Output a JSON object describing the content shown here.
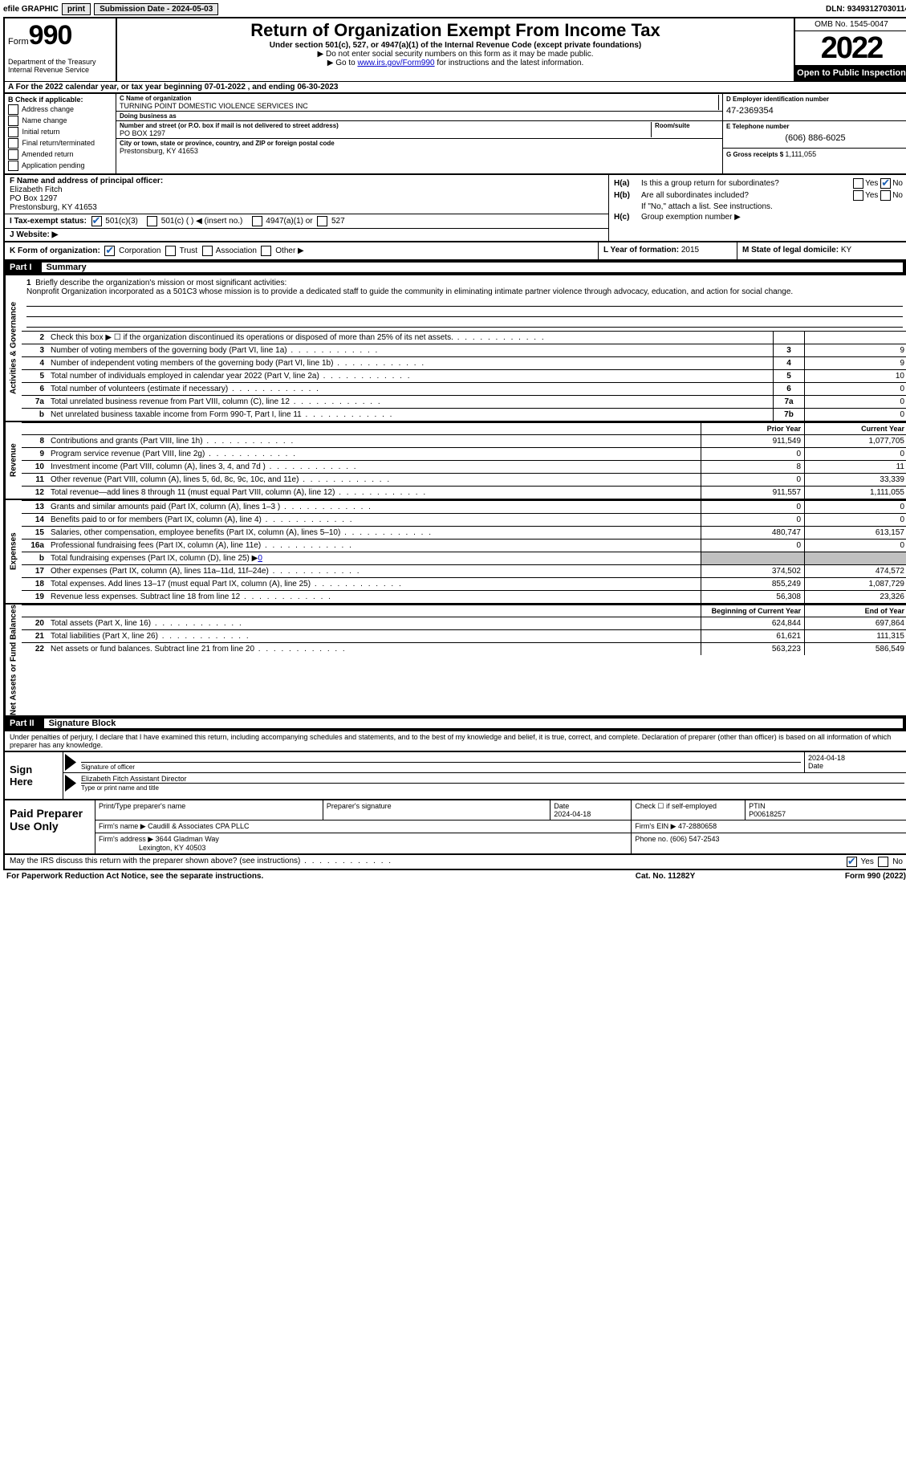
{
  "topbar": {
    "efile": "efile GRAPHIC",
    "print": "print",
    "subdate_label": "Submission Date - ",
    "subdate": "2024-05-03",
    "dln_label": "DLN: ",
    "dln": "93493127030114"
  },
  "header": {
    "form_label": "Form",
    "form_num": "990",
    "dept": "Department of the Treasury\nInternal Revenue Service",
    "title": "Return of Organization Exempt From Income Tax",
    "subtitle": "Under section 501(c), 527, or 4947(a)(1) of the Internal Revenue Code (except private foundations)",
    "line1": "▶ Do not enter social security numbers on this form as it may be made public.",
    "line2_pre": "▶ Go to ",
    "line2_link": "www.irs.gov/Form990",
    "line2_post": " for instructions and the latest information.",
    "omb": "OMB No. 1545-0047",
    "year": "2022",
    "open": "Open to Public Inspection"
  },
  "row_a": {
    "text": "A For the 2022 calendar year, or tax year beginning 07-01-2022     , and ending 06-30-2023"
  },
  "col_b": {
    "label": "B Check if applicable:",
    "opts": [
      "Address change",
      "Name change",
      "Initial return",
      "Final return/terminated",
      "Amended return",
      "Application pending"
    ]
  },
  "col_c": {
    "name_label": "C Name of organization",
    "name": "TURNING POINT DOMESTIC VIOLENCE SERVICES INC",
    "dba_label": "Doing business as",
    "dba": "",
    "addr_label": "Number and street (or P.O. box if mail is not delivered to street address)",
    "addr": "PO BOX 1297",
    "room_label": "Room/suite",
    "city_label": "City or town, state or province, country, and ZIP or foreign postal code",
    "city": "Prestonsburg, KY  41653"
  },
  "col_d": {
    "ein_label": "D Employer identification number",
    "ein": "47-2369354",
    "tel_label": "E Telephone number",
    "tel": "(606) 886-6025",
    "gross_label": "G Gross receipts $ ",
    "gross": "1,111,055"
  },
  "row_f": {
    "label": "F  Name and address of principal officer:",
    "name": "Elizabeth Fitch",
    "addr1": "PO Box 1297",
    "addr2": "Prestonsburg, KY  41653"
  },
  "row_h": {
    "a_label": "H(a)",
    "a_text": "Is this a group return for subordinates?",
    "b_label": "H(b)",
    "b_text": "Are all subordinates included?",
    "note": "If \"No,\" attach a list. See instructions.",
    "c_label": "H(c)",
    "c_text": "Group exemption number ▶"
  },
  "row_i": {
    "label": "I  Tax-exempt status:",
    "o1": "501(c)(3)",
    "o2": "501(c) (  ) ◀ (insert no.)",
    "o3": "4947(a)(1) or",
    "o4": "527"
  },
  "row_j": {
    "label": "J  Website: ▶"
  },
  "row_k": {
    "label": "K Form of organization:",
    "o1": "Corporation",
    "o2": "Trust",
    "o3": "Association",
    "o4": "Other ▶"
  },
  "row_l": {
    "label": "L Year of formation: ",
    "val": "2015"
  },
  "row_m": {
    "label": "M State of legal domicile: ",
    "val": "KY"
  },
  "part1": {
    "num": "Part I",
    "title": "Summary"
  },
  "mission": {
    "num": "1",
    "label": "Briefly describe the organization's mission or most significant activities:",
    "text": "Nonprofit Organization incorporated as a 501C3 whose mission is to provide a dedicated staff to guide the community in eliminating intimate partner violence through advocacy, education, and action for social change."
  },
  "gov_rows": [
    {
      "n": "2",
      "t": "Check this box ▶ ☐  if the organization discontinued its operations or disposed of more than 25% of its net assets.",
      "box": "",
      "v": ""
    },
    {
      "n": "3",
      "t": "Number of voting members of the governing body (Part VI, line 1a)",
      "box": "3",
      "v": "9"
    },
    {
      "n": "4",
      "t": "Number of independent voting members of the governing body (Part VI, line 1b)",
      "box": "4",
      "v": "9"
    },
    {
      "n": "5",
      "t": "Total number of individuals employed in calendar year 2022 (Part V, line 2a)",
      "box": "5",
      "v": "10"
    },
    {
      "n": "6",
      "t": "Total number of volunteers (estimate if necessary)",
      "box": "6",
      "v": "0"
    },
    {
      "n": "7a",
      "t": "Total unrelated business revenue from Part VIII, column (C), line 12",
      "box": "7a",
      "v": "0"
    },
    {
      "n": "b",
      "t": "Net unrelated business taxable income from Form 990-T, Part I, line 11",
      "box": "7b",
      "v": "0"
    }
  ],
  "year_hdr": {
    "prior": "Prior Year",
    "current": "Current Year"
  },
  "rev_rows": [
    {
      "n": "8",
      "t": "Contributions and grants (Part VIII, line 1h)",
      "p": "911,549",
      "c": "1,077,705"
    },
    {
      "n": "9",
      "t": "Program service revenue (Part VIII, line 2g)",
      "p": "0",
      "c": "0"
    },
    {
      "n": "10",
      "t": "Investment income (Part VIII, column (A), lines 3, 4, and 7d )",
      "p": "8",
      "c": "11"
    },
    {
      "n": "11",
      "t": "Other revenue (Part VIII, column (A), lines 5, 6d, 8c, 9c, 10c, and 11e)",
      "p": "0",
      "c": "33,339"
    },
    {
      "n": "12",
      "t": "Total revenue—add lines 8 through 11 (must equal Part VIII, column (A), line 12)",
      "p": "911,557",
      "c": "1,111,055"
    }
  ],
  "exp_rows": [
    {
      "n": "13",
      "t": "Grants and similar amounts paid (Part IX, column (A), lines 1–3 )",
      "p": "0",
      "c": "0"
    },
    {
      "n": "14",
      "t": "Benefits paid to or for members (Part IX, column (A), line 4)",
      "p": "0",
      "c": "0"
    },
    {
      "n": "15",
      "t": "Salaries, other compensation, employee benefits (Part IX, column (A), lines 5–10)",
      "p": "480,747",
      "c": "613,157"
    },
    {
      "n": "16a",
      "t": "Professional fundraising fees (Part IX, column (A), line 11e)",
      "p": "0",
      "c": "0"
    },
    {
      "n": "b",
      "t": "Total fundraising expenses (Part IX, column (D), line 25) ▶0",
      "p": "",
      "c": "",
      "shaded": true
    },
    {
      "n": "17",
      "t": "Other expenses (Part IX, column (A), lines 11a–11d, 11f–24e)",
      "p": "374,502",
      "c": "474,572"
    },
    {
      "n": "18",
      "t": "Total expenses. Add lines 13–17 (must equal Part IX, column (A), line 25)",
      "p": "855,249",
      "c": "1,087,729"
    },
    {
      "n": "19",
      "t": "Revenue less expenses. Subtract line 18 from line 12",
      "p": "56,308",
      "c": "23,326"
    }
  ],
  "net_hdr": {
    "begin": "Beginning of Current Year",
    "end": "End of Year"
  },
  "net_rows": [
    {
      "n": "20",
      "t": "Total assets (Part X, line 16)",
      "p": "624,844",
      "c": "697,864"
    },
    {
      "n": "21",
      "t": "Total liabilities (Part X, line 26)",
      "p": "61,621",
      "c": "111,315"
    },
    {
      "n": "22",
      "t": "Net assets or fund balances. Subtract line 21 from line 20",
      "p": "563,223",
      "c": "586,549"
    }
  ],
  "side": {
    "gov": "Activities & Governance",
    "rev": "Revenue",
    "exp": "Expenses",
    "net": "Net Assets or Fund Balances"
  },
  "part2": {
    "num": "Part II",
    "title": "Signature Block"
  },
  "sig_text": "Under penalties of perjury, I declare that I have examined this return, including accompanying schedules and statements, and to the best of my knowledge and belief, it is true, correct, and complete. Declaration of preparer (other than officer) is based on all information of which preparer has any knowledge.",
  "sign": {
    "label": "Sign Here",
    "sig_label": "Signature of officer",
    "date": "2024-04-18",
    "date_label": "Date",
    "name": "Elizabeth Fitch  Assistant Director",
    "name_label": "Type or print name and title"
  },
  "prep": {
    "label": "Paid Preparer Use Only",
    "r1c1_label": "Print/Type preparer's name",
    "r1c2_label": "Preparer's signature",
    "r1c3_label": "Date",
    "r1c3": "2024-04-18",
    "r1c4_label": "Check ☐ if self-employed",
    "r1c5_label": "PTIN",
    "r1c5": "P00618257",
    "r2c1_label": "Firm's name     ▶ ",
    "r2c1": "Caudill & Associates CPA PLLC",
    "r2c2_label": "Firm's EIN ▶ ",
    "r2c2": "47-2880658",
    "r3c1_label": "Firm's address ▶ ",
    "r3c1a": "3644 Gladman Way",
    "r3c1b": "Lexington, KY  40503",
    "r3c2_label": "Phone no. ",
    "r3c2": "(606) 547-2543"
  },
  "discuss": {
    "text": "May the IRS discuss this return with the preparer shown above? (see instructions)",
    "yes": "Yes",
    "no": "No"
  },
  "bottom": {
    "left": "For Paperwork Reduction Act Notice, see the separate instructions.",
    "mid": "Cat. No. 11282Y",
    "right": "Form 990 (2022)"
  },
  "colors": {
    "link": "#0000cc",
    "check": "#1a5fb4",
    "black": "#000000",
    "shaded": "#c0c0c0"
  }
}
